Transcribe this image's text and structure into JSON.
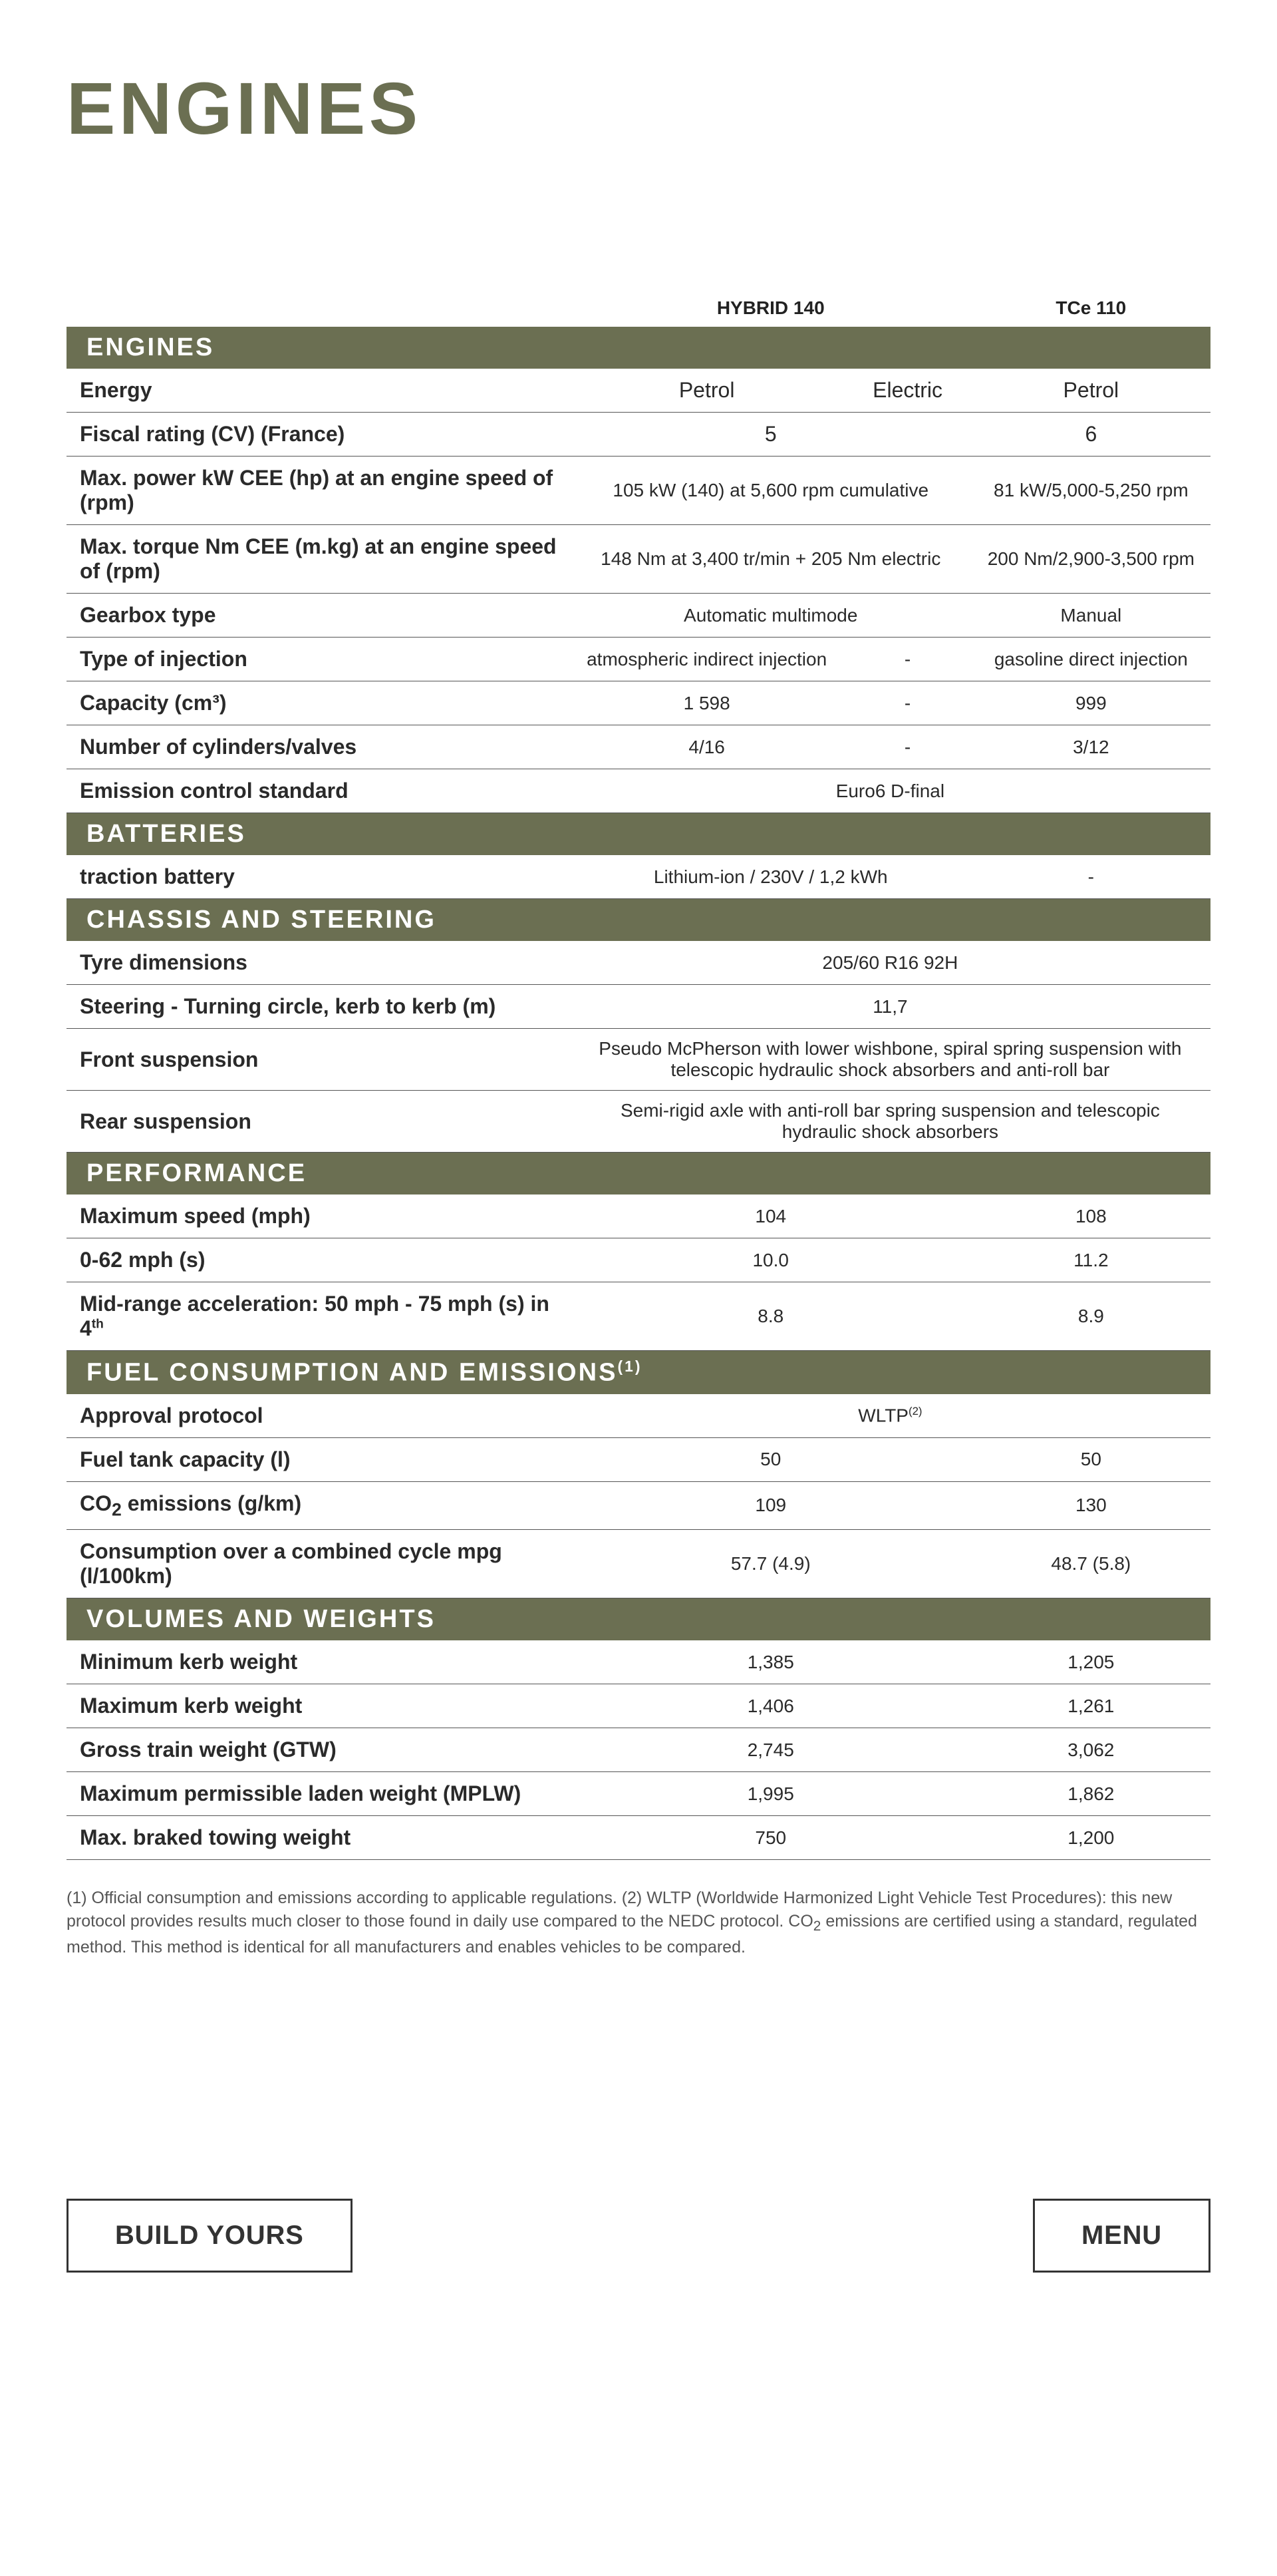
{
  "title": "ENGINES",
  "columns": {
    "c1": "HYBRID 140",
    "c2": "TCe 110"
  },
  "sections": [
    {
      "heading": "ENGINES",
      "rows": [
        {
          "label": "Energy",
          "cells": [
            "Petrol",
            "Electric",
            "Petrol"
          ],
          "span": [
            1,
            1,
            1
          ]
        },
        {
          "label": "Fiscal rating (CV) (France)",
          "cells": [
            "5",
            "6"
          ],
          "span": [
            2,
            1
          ]
        },
        {
          "label": "Max. power kW CEE (hp) at an engine speed of (rpm)",
          "cells": [
            "105 kW (140) at 5,600 rpm cumulative",
            "81 kW/5,000-5,250 rpm"
          ],
          "span": [
            2,
            1
          ],
          "small": true
        },
        {
          "label": "Max. torque Nm CEE (m.kg) at an engine speed of (rpm)",
          "cells": [
            "148 Nm at 3,400 tr/min + 205 Nm electric",
            "200 Nm/2,900-3,500 rpm"
          ],
          "span": [
            2,
            1
          ],
          "small": true
        },
        {
          "label": "Gearbox type",
          "cells": [
            "Automatic multimode",
            "Manual"
          ],
          "span": [
            2,
            1
          ],
          "small": true
        },
        {
          "label": "Type of injection",
          "cells": [
            "atmospheric indirect injection",
            "-",
            "gasoline direct injection"
          ],
          "span": [
            1,
            1,
            1
          ],
          "small": true
        },
        {
          "label": "Capacity (cm³)",
          "cells": [
            "1 598",
            "-",
            "999"
          ],
          "span": [
            1,
            1,
            1
          ],
          "small": true
        },
        {
          "label": "Number of cylinders/valves",
          "cells": [
            "4/16",
            "-",
            "3/12"
          ],
          "span": [
            1,
            1,
            1
          ],
          "small": true
        },
        {
          "label": "Emission control standard",
          "cells": [
            "Euro6 D-final"
          ],
          "span": [
            3
          ],
          "small": true
        }
      ]
    },
    {
      "heading": "BATTERIES",
      "rows": [
        {
          "label": "traction battery",
          "cells": [
            "Lithium-ion / 230V / 1,2 kWh",
            "-"
          ],
          "span": [
            2,
            1
          ],
          "small": true
        }
      ]
    },
    {
      "heading": "CHASSIS AND STEERING",
      "rows": [
        {
          "label": "Tyre dimensions",
          "cells": [
            "205/60 R16 92H"
          ],
          "span": [
            3
          ],
          "small": true
        },
        {
          "label": "Steering - Turning circle, kerb to kerb (m)",
          "cells": [
            "11,7"
          ],
          "span": [
            3
          ],
          "small": true
        },
        {
          "label": "Front suspension",
          "cells": [
            "Pseudo McPherson with lower wishbone, spiral spring suspension with telescopic hydraulic shock absorbers and anti-roll bar"
          ],
          "span": [
            3
          ],
          "small": true
        },
        {
          "label": "Rear suspension",
          "cells": [
            "Semi-rigid axle with anti-roll bar spring suspension and telescopic hydraulic shock absorbers"
          ],
          "span": [
            3
          ],
          "small": true
        }
      ]
    },
    {
      "heading": "PERFORMANCE",
      "rows": [
        {
          "label": "Maximum speed (mph)",
          "cells": [
            "104",
            "108"
          ],
          "span": [
            2,
            1
          ],
          "small": true
        },
        {
          "label": "0-62 mph (s)",
          "cells": [
            "10.0",
            "11.2"
          ],
          "span": [
            2,
            1
          ],
          "small": true
        },
        {
          "label_html": "Mid-range acceleration: 50 mph - 75 mph (s) in 4<sup>th</sup>",
          "cells": [
            "8.8",
            "8.9"
          ],
          "span": [
            2,
            1
          ],
          "small": true
        }
      ]
    },
    {
      "heading_html": "FUEL CONSUMPTION AND EMISSIONS<sup>(1)</sup>",
      "rows": [
        {
          "label": "Approval protocol",
          "cells_html": [
            "WLTP<sup>(2)</sup>"
          ],
          "span": [
            3
          ],
          "small": true
        },
        {
          "label": "Fuel tank capacity (l)",
          "cells": [
            "50",
            "50"
          ],
          "span": [
            2,
            1
          ],
          "small": true
        },
        {
          "label_html": "CO<sub>2</sub> emissions (g/km)",
          "cells": [
            "109",
            "130"
          ],
          "span": [
            2,
            1
          ],
          "small": true
        },
        {
          "label": "Consumption over a combined cycle mpg (l/100km)",
          "cells": [
            "57.7 (4.9)",
            "48.7 (5.8)"
          ],
          "span": [
            2,
            1
          ],
          "small": true
        }
      ]
    },
    {
      "heading": "VOLUMES AND WEIGHTS",
      "rows": [
        {
          "label": "Minimum kerb weight",
          "cells": [
            "1,385",
            "1,205"
          ],
          "span": [
            2,
            1
          ],
          "small": true
        },
        {
          "label": "Maximum kerb weight",
          "cells": [
            "1,406",
            "1,261"
          ],
          "span": [
            2,
            1
          ],
          "small": true
        },
        {
          "label": "Gross train weight (GTW)",
          "cells": [
            "2,745",
            "3,062"
          ],
          "span": [
            2,
            1
          ],
          "small": true
        },
        {
          "label": "Maximum permissible laden weight (MPLW)",
          "cells": [
            "1,995",
            "1,862"
          ],
          "span": [
            2,
            1
          ],
          "small": true
        },
        {
          "label": "Max. braked towing weight",
          "cells": [
            "750",
            "1,200"
          ],
          "span": [
            2,
            1
          ],
          "small": true
        }
      ]
    }
  ],
  "footnote_html": "(1) Official consumption and emissions according to applicable regulations. (2) WLTP (Worldwide Harmonized Light Vehicle Test Procedures): this new protocol provides results much closer to those found in daily use compared to the NEDC protocol. CO<sub>2</sub> emissions are certified using a standard, regulated method. This method is identical for all manufacturers and enables vehicles to be compared.",
  "buttons": {
    "left": "BUILD YOURS",
    "right": "MENU"
  }
}
